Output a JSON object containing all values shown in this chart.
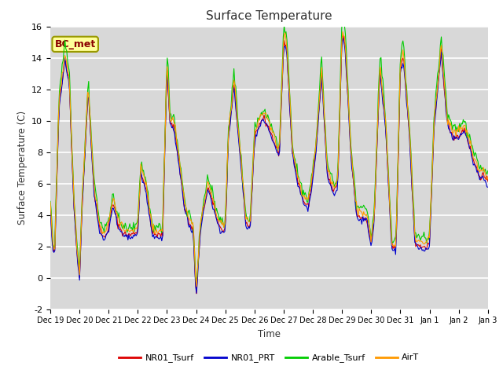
{
  "title": "Surface Temperature",
  "ylabel": "Surface Temperature (C)",
  "xlabel": "Time",
  "annotation": "BC_met",
  "ylim": [
    -2,
    16
  ],
  "yticks": [
    -2,
    0,
    2,
    4,
    6,
    8,
    10,
    12,
    14,
    16
  ],
  "legend_labels": [
    "NR01_Tsurf",
    "NR01_PRT",
    "Arable_Tsurf",
    "AirT"
  ],
  "line_colors": [
    "#dd0000",
    "#0000cc",
    "#00cc00",
    "#ff9900"
  ],
  "bg_color": "#d8d8d8",
  "n_points": 480,
  "ctrl_t": [
    0,
    0.08,
    0.15,
    0.3,
    0.5,
    0.65,
    0.8,
    0.9,
    1.0,
    1.1,
    1.3,
    1.5,
    1.7,
    1.85,
    2.0,
    2.15,
    2.3,
    2.5,
    2.7,
    2.85,
    3.0,
    3.1,
    3.3,
    3.5,
    3.7,
    3.85,
    4.0,
    4.1,
    4.25,
    4.4,
    4.6,
    4.75,
    4.9,
    5.0,
    5.15,
    5.4,
    5.6,
    5.8,
    6.0,
    6.1,
    6.3,
    6.5,
    6.7,
    6.85,
    7.0,
    7.1,
    7.3,
    7.5,
    7.7,
    7.85,
    8.0,
    8.1,
    8.3,
    8.5,
    8.7,
    8.85,
    9.0,
    9.1,
    9.3,
    9.5,
    9.7,
    9.85,
    10.0,
    10.1,
    10.3,
    10.5,
    10.7,
    10.85,
    11.0,
    11.1,
    11.3,
    11.5,
    11.7,
    11.85,
    12.0,
    12.1,
    12.3,
    12.5,
    12.7,
    12.85,
    13.0,
    13.15,
    13.4,
    13.6,
    13.8,
    14.0,
    14.2,
    14.5,
    14.7,
    14.85,
    15.0
  ],
  "ctrl_v_base": [
    4.5,
    2.0,
    1.5,
    11.0,
    14.0,
    12.5,
    5.0,
    2.0,
    -0.1,
    5.0,
    12.0,
    5.5,
    3.0,
    2.5,
    3.2,
    4.8,
    3.5,
    2.8,
    2.7,
    2.8,
    3.0,
    6.8,
    5.5,
    2.8,
    2.7,
    2.7,
    13.5,
    10.0,
    9.5,
    7.5,
    4.5,
    3.5,
    3.0,
    -1.2,
    3.2,
    5.8,
    4.5,
    3.2,
    3.0,
    8.9,
    12.3,
    8.0,
    3.5,
    3.2,
    8.9,
    9.5,
    10.2,
    9.5,
    8.5,
    7.8,
    15.0,
    14.7,
    8.0,
    6.0,
    4.8,
    4.5,
    6.5,
    8.0,
    13.0,
    6.5,
    5.5,
    5.8,
    15.5,
    15.0,
    8.0,
    4.0,
    3.8,
    3.8,
    2.0,
    3.8,
    13.3,
    9.5,
    2.0,
    1.8,
    13.5,
    14.0,
    9.5,
    2.2,
    2.0,
    1.9,
    2.2,
    9.5,
    14.5,
    10.0,
    9.0,
    9.0,
    9.5,
    7.5,
    6.5,
    6.5,
    6.0
  ],
  "offsets": [
    0.0,
    -0.15,
    0.5,
    0.3
  ],
  "noise_scales": [
    0.12,
    0.1,
    0.18,
    0.14
  ],
  "seeds": [
    42,
    43,
    44,
    45
  ]
}
